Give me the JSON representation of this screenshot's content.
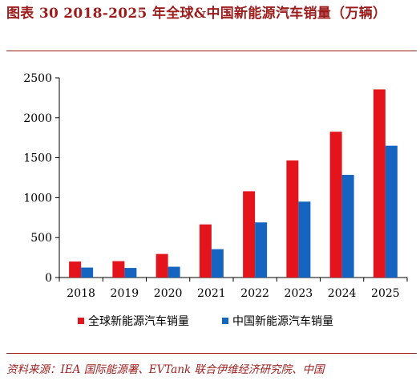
{
  "figure": {
    "title": "图表 30    2018-2025 年全球&中国新能源汽车销量（万辆）",
    "source": "资料来源：IEA 国际能源署、EVTank 联合伊维经济研究院、中国"
  },
  "chart_data": {
    "type": "bar",
    "categories": [
      "2018",
      "2019",
      "2020",
      "2021",
      "2022",
      "2023",
      "2024",
      "2025"
    ],
    "series": [
      {
        "name": "全球新能源汽车销量",
        "color": "#e3141c",
        "values": [
          200,
          205,
          295,
          665,
          1080,
          1465,
          1825,
          2355
        ]
      },
      {
        "name": "中国新能源汽车销量",
        "color": "#1565c0",
        "values": [
          125,
          120,
          135,
          355,
          690,
          950,
          1285,
          1650
        ]
      }
    ],
    "ylim": [
      0,
      2500
    ],
    "yticks": [
      0,
      500,
      1000,
      1500,
      2000,
      2500
    ],
    "xlabel": "",
    "ylabel": "",
    "grid": false,
    "legend": "bottom"
  }
}
